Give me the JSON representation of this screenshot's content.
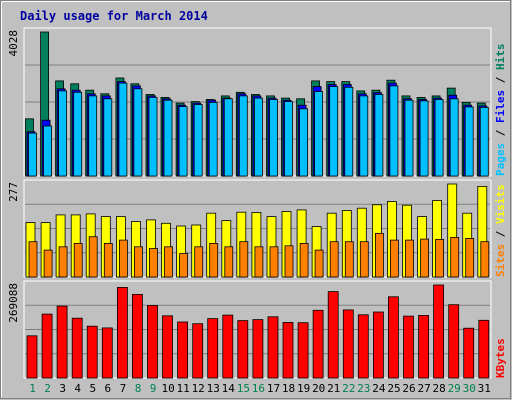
{
  "chart_data": [
    {
      "panel": "hits-files-pages",
      "type": "bar",
      "title": "Daily usage for March 2014",
      "categories": [
        "1",
        "2",
        "3",
        "4",
        "5",
        "6",
        "7",
        "8",
        "9",
        "10",
        "11",
        "12",
        "13",
        "14",
        "15",
        "16",
        "17",
        "18",
        "19",
        "20",
        "21",
        "22",
        "23",
        "24",
        "25",
        "26",
        "27",
        "28",
        "29",
        "30",
        "31"
      ],
      "weekend_days": [
        "1",
        "2",
        "8",
        "9",
        "15",
        "16",
        "22",
        "23",
        "29",
        "30"
      ],
      "ymax_label": "4028",
      "ylim": [
        0,
        4028
      ],
      "legend": [
        "Pages",
        "Files",
        "Hits"
      ],
      "series": [
        {
          "name": "Hits",
          "color": "#007f5f",
          "values": [
            1600,
            4028,
            2660,
            2580,
            2400,
            2300,
            2740,
            2580,
            2280,
            2200,
            2040,
            2080,
            2140,
            2240,
            2340,
            2280,
            2240,
            2180,
            2160,
            2660,
            2640,
            2640,
            2380,
            2400,
            2680,
            2240,
            2200,
            2240,
            2460,
            2060,
            2040
          ]
        },
        {
          "name": "Files",
          "color": "#0000ff",
          "values": [
            1240,
            1560,
            2440,
            2400,
            2300,
            2240,
            2640,
            2520,
            2240,
            2160,
            1980,
            2040,
            2120,
            2180,
            2300,
            2240,
            2180,
            2120,
            1980,
            2500,
            2560,
            2560,
            2300,
            2330,
            2600,
            2160,
            2140,
            2180,
            2260,
            1980,
            1960
          ]
        },
        {
          "name": "Pages",
          "color": "#00c0ff",
          "values": [
            1200,
            1400,
            2380,
            2340,
            2240,
            2160,
            2600,
            2440,
            2200,
            2120,
            1940,
            2000,
            2060,
            2160,
            2240,
            2180,
            2140,
            2080,
            1880,
            2360,
            2500,
            2480,
            2240,
            2280,
            2520,
            2120,
            2100,
            2140,
            2160,
            1930,
            1920
          ]
        }
      ]
    },
    {
      "panel": "visits-sites",
      "type": "bar",
      "categories": [
        "1",
        "2",
        "3",
        "4",
        "5",
        "6",
        "7",
        "8",
        "9",
        "10",
        "11",
        "12",
        "13",
        "14",
        "15",
        "16",
        "17",
        "18",
        "19",
        "20",
        "21",
        "22",
        "23",
        "24",
        "25",
        "26",
        "27",
        "28",
        "29",
        "30",
        "31"
      ],
      "ymax_label": "277",
      "ylim": [
        0,
        277
      ],
      "legend": [
        "Sites",
        "Visits"
      ],
      "series": [
        {
          "name": "Visits",
          "color": "#ffff00",
          "values": [
            162,
            162,
            185,
            185,
            188,
            180,
            180,
            165,
            170,
            160,
            152,
            155,
            190,
            168,
            193,
            192,
            180,
            195,
            200,
            150,
            190,
            198,
            205,
            215,
            225,
            214,
            180,
            228,
            277,
            190,
            270
          ]
        },
        {
          "name": "Sites",
          "color": "#ff8000",
          "values": [
            105,
            80,
            90,
            100,
            120,
            100,
            110,
            90,
            85,
            90,
            70,
            90,
            100,
            90,
            105,
            90,
            90,
            93,
            100,
            80,
            105,
            105,
            105,
            130,
            110,
            110,
            113,
            112,
            118,
            115,
            105
          ]
        }
      ]
    },
    {
      "panel": "kbytes",
      "type": "bar",
      "categories": [
        "1",
        "2",
        "3",
        "4",
        "5",
        "6",
        "7",
        "8",
        "9",
        "10",
        "11",
        "12",
        "13",
        "14",
        "15",
        "16",
        "17",
        "18",
        "19",
        "20",
        "21",
        "22",
        "23",
        "24",
        "25",
        "26",
        "27",
        "28",
        "29",
        "30",
        "31"
      ],
      "ymax_label": "269088",
      "ylim": [
        0,
        269088
      ],
      "legend": [
        "KBytes"
      ],
      "series": [
        {
          "name": "KBytes",
          "color": "#ff0000",
          "values": [
            122000,
            185000,
            208000,
            173000,
            150000,
            145000,
            262000,
            242000,
            210000,
            180000,
            162000,
            157000,
            172000,
            182000,
            166000,
            169000,
            177000,
            161000,
            160000,
            196000,
            250000,
            197000,
            183000,
            191000,
            235000,
            179000,
            181000,
            269088,
            212000,
            144000,
            167000
          ]
        }
      ]
    }
  ]
}
